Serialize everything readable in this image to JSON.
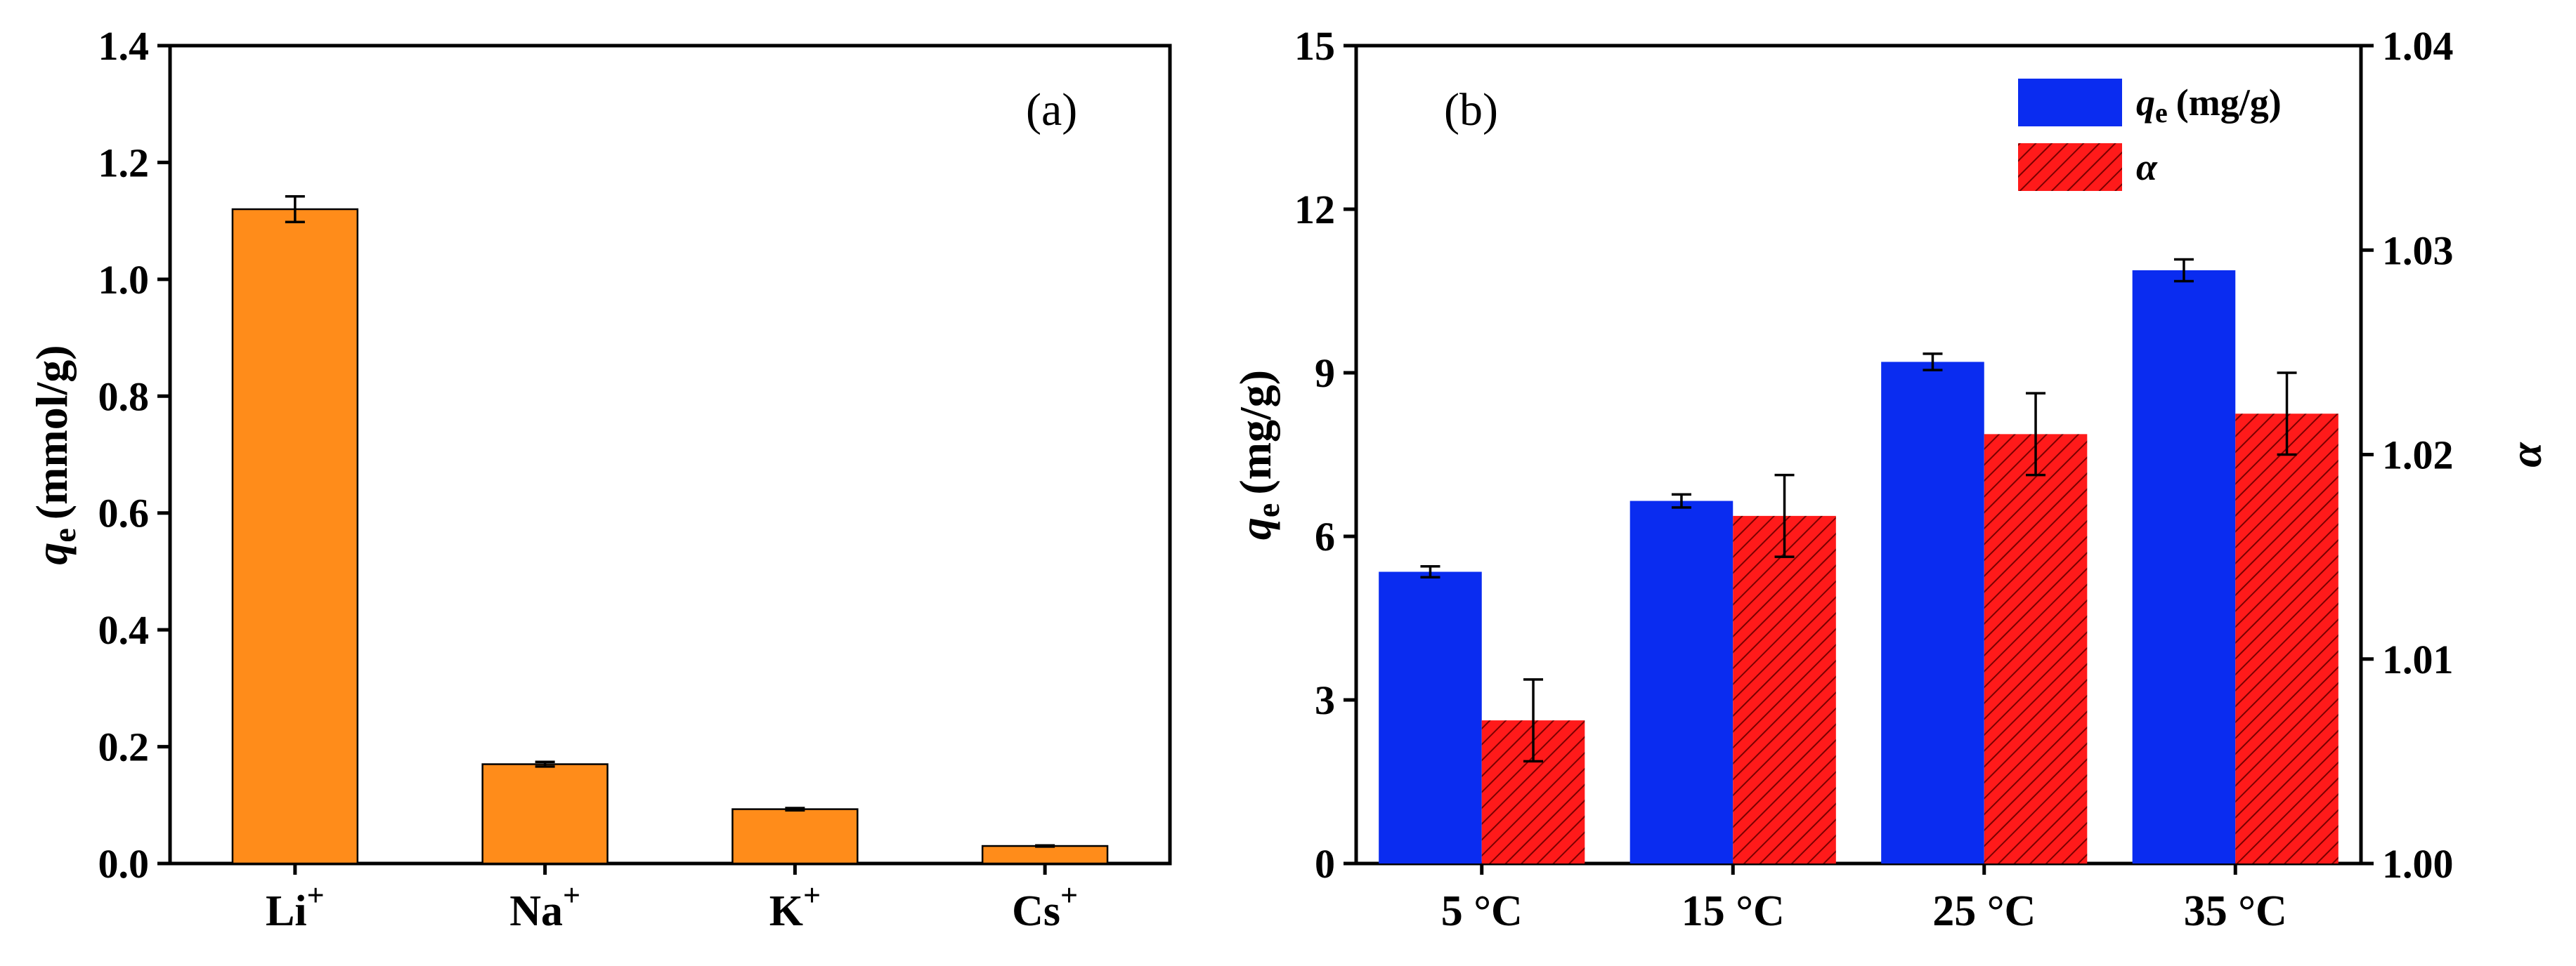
{
  "chart_data": [
    {
      "type": "bar",
      "panel_label": "(a)",
      "categories": [
        "Li",
        "Na",
        "K",
        "Cs"
      ],
      "category_superscript": "+",
      "values": [
        1.12,
        0.17,
        0.093,
        0.03
      ],
      "errors": [
        0.022,
        0.004,
        0.002,
        0.001
      ],
      "color": "#FF8C1A",
      "ylim": [
        0,
        1.4
      ],
      "yticks": [
        "0.0",
        "0.2",
        "0.4",
        "0.6",
        "0.8",
        "1.0",
        "1.2",
        "1.4"
      ],
      "ylabel_symbol": "q",
      "ylabel_sub": "e",
      "ylabel_unit": "(mmol/g)",
      "xlabel": ""
    },
    {
      "type": "bar",
      "panel_label": "(b)",
      "categories": [
        "5 °C",
        "15 °C",
        "25 °C",
        "35 °C"
      ],
      "series": [
        {
          "name": "qe",
          "legend_symbol": "q",
          "legend_sub": "e",
          "legend_unit": "(mg/g)",
          "axis": "left",
          "color": "#0A2CF0",
          "values": [
            5.35,
            6.65,
            9.2,
            10.88
          ],
          "errors": [
            0.1,
            0.12,
            0.15,
            0.2
          ]
        },
        {
          "name": "α",
          "legend_symbol": "α",
          "axis": "right",
          "color": "#FF1A1A",
          "hatch": true,
          "values": [
            1.007,
            1.017,
            1.021,
            1.022
          ],
          "errors": [
            0.002,
            0.002,
            0.002,
            0.002
          ]
        }
      ],
      "ylim": [
        0,
        15
      ],
      "yticks": [
        "0",
        "3",
        "6",
        "9",
        "12",
        "15"
      ],
      "ylabel_symbol": "q",
      "ylabel_sub": "e",
      "ylabel_unit": "(mg/g)",
      "y2lim": [
        1.0,
        1.04
      ],
      "y2ticks": [
        "1.00",
        "1.01",
        "1.02",
        "1.03",
        "1.04"
      ],
      "y2label": "α",
      "legend_position": "top-right"
    }
  ]
}
